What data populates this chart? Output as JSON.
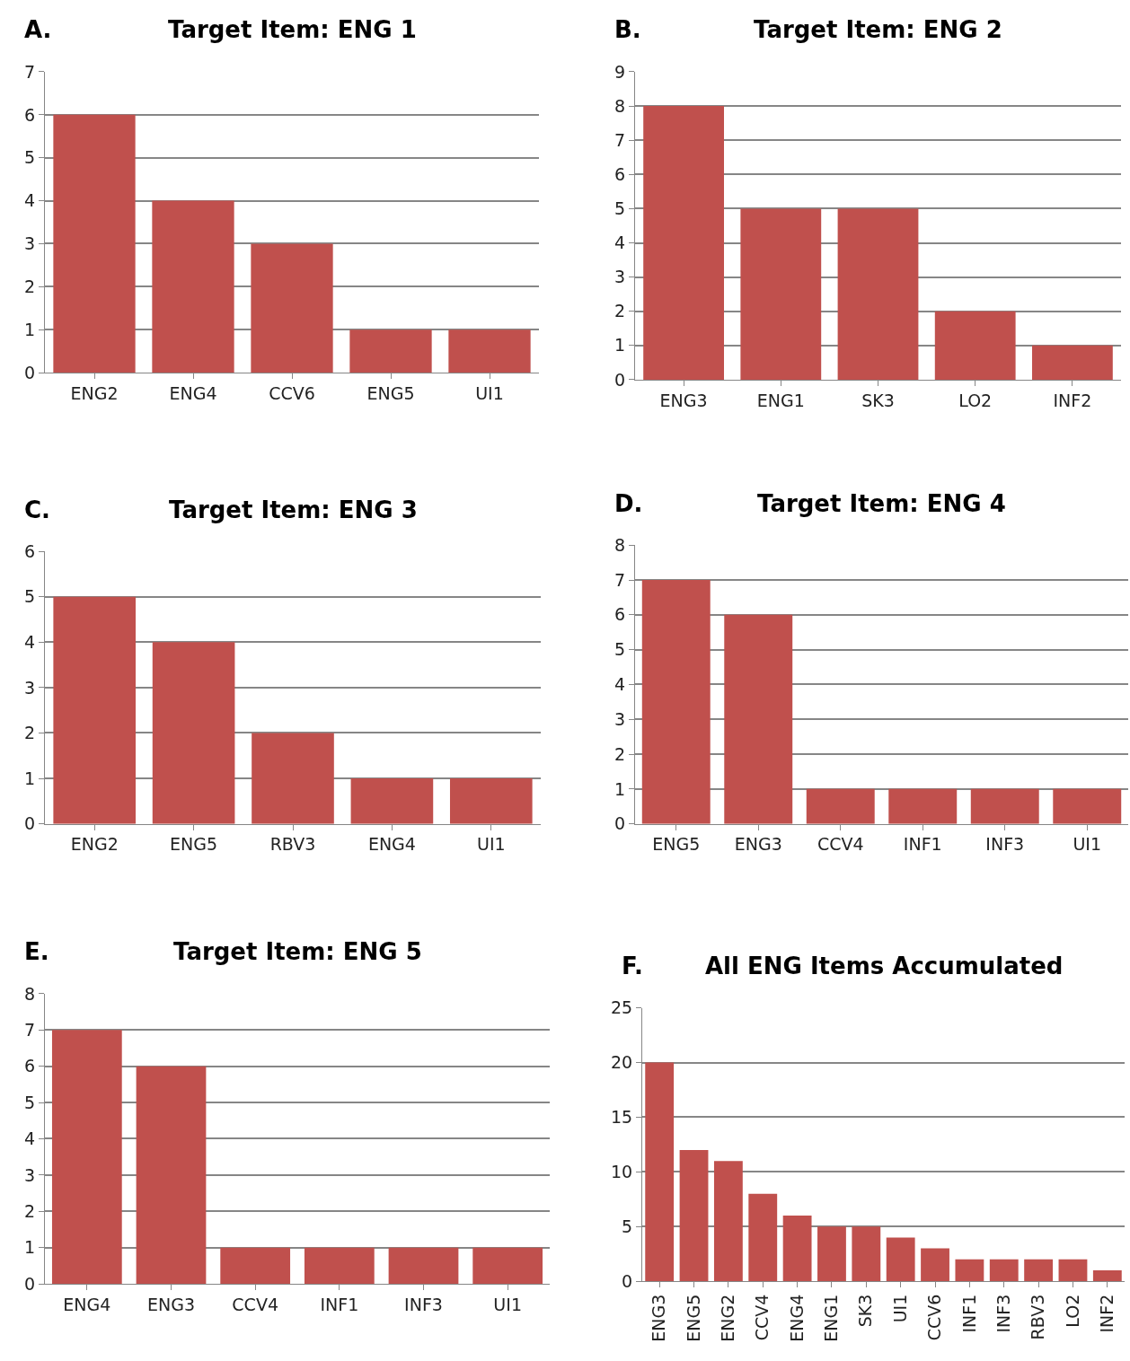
{
  "chart_data": [
    {
      "type": "bar",
      "title": "Target Item: ENG 1",
      "annotations": [
        "A."
      ],
      "categories": [
        "ENG2",
        "ENG4",
        "CCV6",
        "ENG5",
        "UI1"
      ],
      "values": [
        6,
        4,
        3,
        1,
        1
      ],
      "color": "#c0504d",
      "ylim": [
        0,
        7
      ],
      "yticks": [
        0,
        1,
        2,
        3,
        4,
        5,
        6,
        7
      ],
      "grid": "y"
    },
    {
      "type": "bar",
      "title": "Target Item: ENG 2",
      "annotations": [
        "B."
      ],
      "categories": [
        "ENG3",
        "ENG1",
        "SK3",
        "LO2",
        "INF2"
      ],
      "values": [
        8,
        5,
        5,
        2,
        1
      ],
      "color": "#c0504d",
      "ylim": [
        0,
        9
      ],
      "yticks": [
        0,
        1,
        2,
        3,
        4,
        5,
        6,
        7,
        8,
        9
      ],
      "grid": "y"
    },
    {
      "type": "bar",
      "title": "Target Item: ENG 3",
      "annotations": [
        "C."
      ],
      "categories": [
        "ENG2",
        "ENG5",
        "RBV3",
        "ENG4",
        "UI1"
      ],
      "values": [
        5,
        4,
        2,
        1,
        1
      ],
      "color": "#c0504d",
      "ylim": [
        0,
        6
      ],
      "yticks": [
        0,
        1,
        2,
        3,
        4,
        5,
        6
      ],
      "grid": "y"
    },
    {
      "type": "bar",
      "title": "Target Item: ENG 4",
      "annotations": [
        "D."
      ],
      "categories": [
        "ENG5",
        "ENG3",
        "CCV4",
        "INF1",
        "INF3",
        "UI1"
      ],
      "values": [
        7,
        6,
        1,
        1,
        1,
        1
      ],
      "color": "#c0504d",
      "ylim": [
        0,
        8
      ],
      "yticks": [
        0,
        1,
        2,
        3,
        4,
        5,
        6,
        7,
        8
      ],
      "grid": "y"
    },
    {
      "type": "bar",
      "title": "Target Item: ENG 5",
      "annotations": [
        "E."
      ],
      "categories": [
        "ENG4",
        "ENG3",
        "CCV4",
        "INF1",
        "INF3",
        "UI1"
      ],
      "values": [
        7,
        6,
        1,
        1,
        1,
        1
      ],
      "color": "#c0504d",
      "ylim": [
        0,
        8
      ],
      "yticks": [
        0,
        1,
        2,
        3,
        4,
        5,
        6,
        7,
        8
      ],
      "grid": "y"
    },
    {
      "type": "bar",
      "title": "All ENG Items Accumulated",
      "annotations": [
        "F."
      ],
      "categories": [
        "ENG3",
        "ENG5",
        "ENG2",
        "CCV4",
        "ENG4",
        "ENG1",
        "SK3",
        "UI1",
        "CCV6",
        "INF1",
        "INF3",
        "RBV3",
        "LO2",
        "INF2"
      ],
      "values": [
        20,
        12,
        11,
        8,
        6,
        5,
        5,
        4,
        3,
        2,
        2,
        2,
        2,
        1
      ],
      "color": "#c0504d",
      "ylim": [
        0,
        25
      ],
      "yticks": [
        0,
        5,
        10,
        15,
        20,
        25
      ],
      "grid": "y"
    }
  ]
}
